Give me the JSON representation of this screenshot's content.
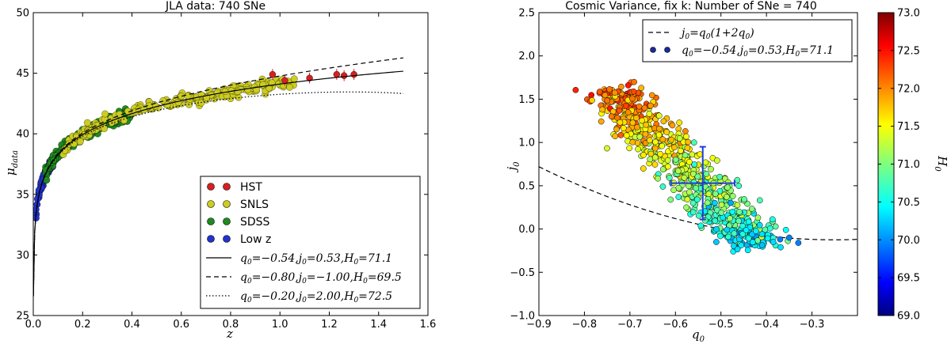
{
  "chart_data": [
    {
      "type": "scatter",
      "title": "JLA data: 740 SNe",
      "xlabel": "z",
      "ylabel_main": "μ",
      "ylabel_sub": "data",
      "xlim": [
        0.0,
        1.6
      ],
      "ylim": [
        25,
        50
      ],
      "xticks": [
        0.0,
        0.2,
        0.4,
        0.6,
        0.8,
        1.0,
        1.2,
        1.4,
        1.6
      ],
      "xtick_labels": [
        "0.0",
        "0.2",
        "0.4",
        "0.6",
        "0.8",
        "1.0",
        "1.2",
        "1.4",
        "1.6"
      ],
      "yticks": [
        25,
        30,
        35,
        40,
        45,
        50
      ],
      "ytick_labels": [
        "25",
        "30",
        "35",
        "40",
        "45",
        "50"
      ],
      "grid": false,
      "legend_position": "bottom-right",
      "series": [
        {
          "name": "HST",
          "color": "#d62020",
          "z_range": [
            0.95,
            1.3
          ],
          "count": 9,
          "points": [
            [
              0.97,
              44.9
            ],
            [
              1.02,
              44.4
            ],
            [
              1.12,
              44.6
            ],
            [
              1.23,
              44.9
            ],
            [
              1.26,
              44.8
            ],
            [
              1.3,
              44.9
            ]
          ]
        },
        {
          "name": "SNLS",
          "color": "#cccc22",
          "z_range": [
            0.12,
            1.06
          ],
          "count": 239
        },
        {
          "name": "SDSS",
          "color": "#1f8a1f",
          "z_range": [
            0.05,
            0.4
          ],
          "count": 374
        },
        {
          "name": "Low z",
          "color": "#2233cc",
          "z_range": [
            0.01,
            0.08
          ],
          "count": 118
        }
      ],
      "models": [
        {
          "label_q": "q",
          "label_sub": "0",
          "label_body": "=−0.54,j",
          "label_body_sub": "0",
          "label_tail": "=0.53,H",
          "label_tail_sub": "0",
          "label_end": "=71.1",
          "q0": -0.54,
          "j0": 0.53,
          "H0": 71.1,
          "style": "solid",
          "z_max": 1.5
        },
        {
          "label_q": "q",
          "label_sub": "0",
          "label_body": "=−0.80,j",
          "label_body_sub": "0",
          "label_tail": "=−1.00,H",
          "label_tail_sub": "0",
          "label_end": "=69.5",
          "q0": -0.8,
          "j0": -1.0,
          "H0": 69.5,
          "style": "dashed",
          "z_max": 1.5
        },
        {
          "label_q": "q",
          "label_sub": "0",
          "label_body": "=−0.20,j",
          "label_body_sub": "0",
          "label_tail": "=2.00,H",
          "label_tail_sub": "0",
          "label_end": "=72.5",
          "q0": -0.2,
          "j0": 2.0,
          "H0": 72.5,
          "style": "dotted",
          "z_max": 1.5
        }
      ],
      "legend_labels": [
        "HST",
        "SNLS",
        "SDSS",
        "Low z"
      ]
    },
    {
      "type": "scatter",
      "title": "Cosmic Variance, fix k: Number of SNe = 740",
      "xlabel_main": "q",
      "xlabel_sub": "0",
      "ylabel_main": "j",
      "ylabel_sub": "0",
      "xlim": [
        -0.9,
        -0.2
      ],
      "ylim": [
        -1.0,
        2.5
      ],
      "xticks": [
        -0.9,
        -0.8,
        -0.7,
        -0.6,
        -0.5,
        -0.4,
        -0.3
      ],
      "xtick_labels": [
        "−0.9",
        "−0.8",
        "−0.7",
        "−0.6",
        "−0.5",
        "−0.4",
        "−0.3"
      ],
      "yticks": [
        -1.0,
        -0.5,
        0.0,
        0.5,
        1.0,
        1.5,
        2.0,
        2.5
      ],
      "ytick_labels": [
        "−1.0",
        "−0.5",
        "0.0",
        "0.5",
        "1.0",
        "1.5",
        "2.0",
        "2.5"
      ],
      "grid": false,
      "legend_position": "top-center",
      "curve": {
        "formula_lhs": "j",
        "formula_lhs_sub": "0",
        "formula_rhs": "=q",
        "formula_rhs_sub": "0",
        "formula_tail": "(1+2q",
        "formula_tail_sub": "0",
        "formula_end": ")",
        "style": "dashed"
      },
      "point_label": {
        "a": "q",
        "a_sub": "0",
        "b": "=−0.54,j",
        "b_sub": "0",
        "c": "=0.53,H",
        "c_sub": "0",
        "d": "=71.1"
      },
      "best_fit": {
        "q0": -0.54,
        "j0": 0.53,
        "q0_err": 0.07,
        "j0_err": 0.42
      },
      "cloud": {
        "count": 740,
        "axis_points": [
          [
            -0.74,
            1.6
          ],
          [
            -0.66,
            1.15
          ],
          [
            -0.58,
            0.7
          ],
          [
            -0.5,
            0.25
          ],
          [
            -0.42,
            -0.2
          ]
        ],
        "outliers": [
          [
            -0.37,
            -0.12
          ],
          [
            -0.35,
            -0.1
          ],
          [
            -0.33,
            -0.16
          ]
        ]
      },
      "colorbar": {
        "label_main": "H",
        "label_sub": "0",
        "min": 69.0,
        "max": 73.0,
        "ticks": [
          69.0,
          69.5,
          70.0,
          70.5,
          71.0,
          71.5,
          72.0,
          72.5,
          73.0
        ],
        "tick_labels": [
          "69.0",
          "69.5",
          "70.0",
          "70.5",
          "71.0",
          "71.5",
          "72.0",
          "72.5",
          "73.0"
        ]
      }
    }
  ]
}
